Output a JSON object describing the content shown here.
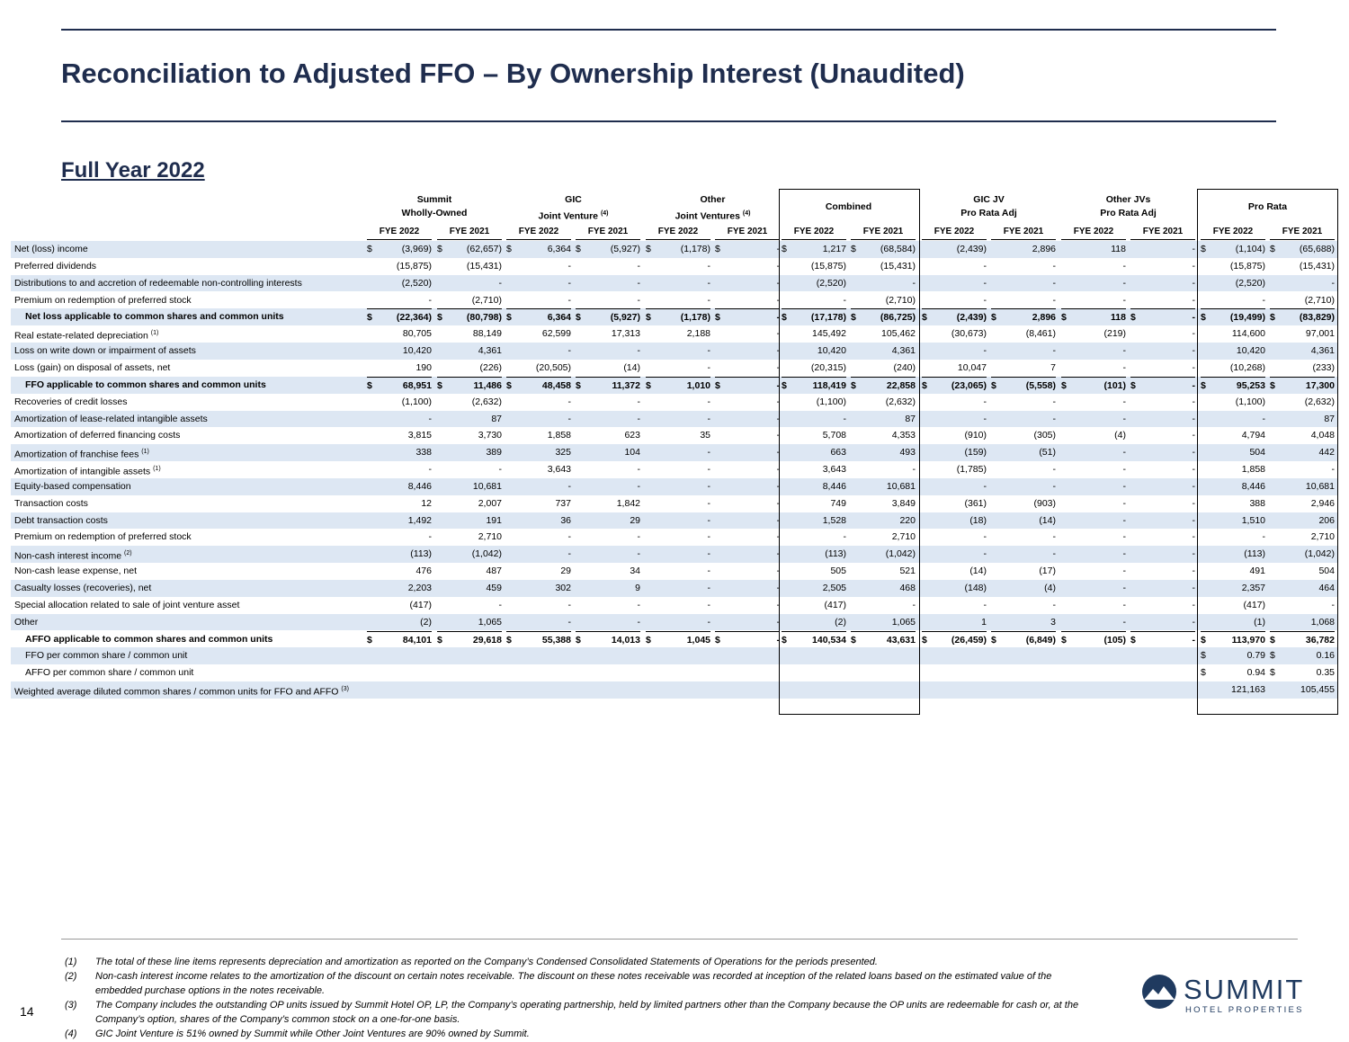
{
  "header": {
    "title": "Reconciliation to Adjusted FFO – By Ownership Interest (Unaudited)",
    "subtitle": "Full Year 2022"
  },
  "table": {
    "groups": [
      {
        "lines": [
          "Summit",
          "Wholly-Owned"
        ]
      },
      {
        "lines": [
          "GIC",
          "Joint Venture"
        ],
        "note": "(4)"
      },
      {
        "lines": [
          "Other",
          "Joint Ventures"
        ],
        "note": "(4)"
      },
      {
        "lines": [
          "Combined"
        ]
      },
      {
        "lines": [
          "GIC JV",
          "Pro Rata Adj"
        ]
      },
      {
        "lines": [
          "Other JVs",
          "Pro Rata Adj"
        ]
      },
      {
        "lines": [
          "Pro Rata"
        ]
      }
    ],
    "columns": [
      "FYE 2022",
      "FYE 2021",
      "FYE 2022",
      "FYE 2021",
      "FYE 2022",
      "FYE 2021",
      "FYE 2022",
      "FYE 2021",
      "FYE 2022",
      "FYE 2021",
      "FYE 2022",
      "FYE 2021",
      "FYE 2022",
      "FYE 2021"
    ],
    "rows": [
      {
        "label": "Net (loss) income",
        "cells": [
          [
            "$",
            "(3,969)"
          ],
          [
            "$",
            "(62,657)"
          ],
          [
            "$",
            "6,364"
          ],
          [
            "$",
            "(5,927)"
          ],
          [
            "$",
            "(1,178)"
          ],
          [
            "$",
            "-"
          ],
          [
            "$",
            "1,217"
          ],
          [
            "$",
            "(68,584)"
          ],
          "(2,439)",
          "2,896",
          "118",
          "-",
          [
            "$",
            "(1,104)"
          ],
          [
            "$",
            "(65,688)"
          ]
        ]
      },
      {
        "label": "Preferred dividends",
        "cells": [
          "(15,875)",
          "(15,431)",
          "-",
          "-",
          "-",
          "-",
          "(15,875)",
          "(15,431)",
          "-",
          "-",
          "-",
          "-",
          "(15,875)",
          "(15,431)"
        ]
      },
      {
        "label": "Distributions to and accretion of redeemable non-controlling interests",
        "cells": [
          "(2,520)",
          "-",
          "-",
          "-",
          "-",
          "-",
          "(2,520)",
          "-",
          "-",
          "-",
          "-",
          "-",
          "(2,520)",
          "-"
        ]
      },
      {
        "label": "Premium on redemption of preferred stock",
        "cells": [
          "-",
          "(2,710)",
          "-",
          "-",
          "-",
          "-",
          "-",
          "(2,710)",
          "-",
          "-",
          "-",
          "-",
          "-",
          "(2,710)"
        ]
      },
      {
        "label": "Net loss applicable to common shares and common units",
        "bold": true,
        "cells": [
          [
            "$",
            "(22,364)"
          ],
          [
            "$",
            "(80,798)"
          ],
          [
            "$",
            "6,364"
          ],
          [
            "$",
            "(5,927)"
          ],
          [
            "$",
            "(1,178)"
          ],
          [
            "$",
            "-"
          ],
          [
            "$",
            "(17,178)"
          ],
          [
            "$",
            "(86,725)"
          ],
          [
            "$",
            "(2,439)"
          ],
          [
            "$",
            "2,896"
          ],
          [
            "$",
            "118"
          ],
          [
            "$",
            "-"
          ],
          [
            "$",
            "(19,499)"
          ],
          [
            "$",
            "(83,829)"
          ]
        ]
      },
      {
        "label": "Real estate-related depreciation",
        "note": "(1)",
        "cells": [
          "80,705",
          "88,149",
          "62,599",
          "17,313",
          "2,188",
          "-",
          "145,492",
          "105,462",
          "(30,673)",
          "(8,461)",
          "(219)",
          "-",
          "114,600",
          "97,001"
        ]
      },
      {
        "label": "Loss on write down or impairment of assets",
        "cells": [
          "10,420",
          "4,361",
          "-",
          "-",
          "-",
          "-",
          "10,420",
          "4,361",
          "-",
          "-",
          "-",
          "-",
          "10,420",
          "4,361"
        ]
      },
      {
        "label": "Loss (gain) on disposal of assets, net",
        "cells": [
          "190",
          "(226)",
          "(20,505)",
          "(14)",
          "-",
          "-",
          "(20,315)",
          "(240)",
          "10,047",
          "7",
          "-",
          "-",
          "(10,268)",
          "(233)"
        ]
      },
      {
        "label": "FFO applicable to common shares and common units",
        "bold": true,
        "cells": [
          [
            "$",
            "68,951"
          ],
          [
            "$",
            "11,486"
          ],
          [
            "$",
            "48,458"
          ],
          [
            "$",
            "11,372"
          ],
          [
            "$",
            "1,010"
          ],
          [
            "$",
            "-"
          ],
          [
            "$",
            "118,419"
          ],
          [
            "$",
            "22,858"
          ],
          [
            "$",
            "(23,065)"
          ],
          [
            "$",
            "(5,558)"
          ],
          [
            "$",
            "(101)"
          ],
          [
            "$",
            "-"
          ],
          [
            "$",
            "95,253"
          ],
          [
            "$",
            "17,300"
          ]
        ]
      },
      {
        "label": "Recoveries of credit losses",
        "cells": [
          "(1,100)",
          "(2,632)",
          "-",
          "-",
          "-",
          "-",
          "(1,100)",
          "(2,632)",
          "-",
          "-",
          "-",
          "-",
          "(1,100)",
          "(2,632)"
        ]
      },
      {
        "label": "Amortization of lease-related intangible assets",
        "cells": [
          "-",
          "87",
          "-",
          "-",
          "-",
          "-",
          "-",
          "87",
          "-",
          "-",
          "-",
          "-",
          "-",
          "87"
        ]
      },
      {
        "label": "Amortization of deferred financing costs",
        "cells": [
          "3,815",
          "3,730",
          "1,858",
          "623",
          "35",
          "-",
          "5,708",
          "4,353",
          "(910)",
          "(305)",
          "(4)",
          "-",
          "4,794",
          "4,048"
        ]
      },
      {
        "label": "Amortization of franchise fees",
        "note": "(1)",
        "cells": [
          "338",
          "389",
          "325",
          "104",
          "-",
          "-",
          "663",
          "493",
          "(159)",
          "(51)",
          "-",
          "-",
          "504",
          "442"
        ]
      },
      {
        "label": "Amortization of intangible assets",
        "note": "(1)",
        "cells": [
          "-",
          "-",
          "3,643",
          "-",
          "-",
          "-",
          "3,643",
          "-",
          "(1,785)",
          "-",
          "-",
          "-",
          "1,858",
          "-"
        ]
      },
      {
        "label": "Equity-based compensation",
        "cells": [
          "8,446",
          "10,681",
          "-",
          "-",
          "-",
          "-",
          "8,446",
          "10,681",
          "-",
          "-",
          "-",
          "-",
          "8,446",
          "10,681"
        ]
      },
      {
        "label": "Transaction costs",
        "cells": [
          "12",
          "2,007",
          "737",
          "1,842",
          "-",
          "-",
          "749",
          "3,849",
          "(361)",
          "(903)",
          "-",
          "-",
          "388",
          "2,946"
        ]
      },
      {
        "label": "Debt transaction costs",
        "cells": [
          "1,492",
          "191",
          "36",
          "29",
          "-",
          "-",
          "1,528",
          "220",
          "(18)",
          "(14)",
          "-",
          "-",
          "1,510",
          "206"
        ]
      },
      {
        "label": "Premium on redemption of preferred stock",
        "cells": [
          "-",
          "2,710",
          "-",
          "-",
          "-",
          "-",
          "-",
          "2,710",
          "-",
          "-",
          "-",
          "-",
          "-",
          "2,710"
        ]
      },
      {
        "label": "Non-cash interest income",
        "note": "(2)",
        "cells": [
          "(113)",
          "(1,042)",
          "-",
          "-",
          "-",
          "-",
          "(113)",
          "(1,042)",
          "-",
          "-",
          "-",
          "-",
          "(113)",
          "(1,042)"
        ]
      },
      {
        "label": "Non-cash lease expense, net",
        "cells": [
          "476",
          "487",
          "29",
          "34",
          "-",
          "-",
          "505",
          "521",
          "(14)",
          "(17)",
          "-",
          "-",
          "491",
          "504"
        ]
      },
      {
        "label": "Casualty losses (recoveries), net",
        "cells": [
          "2,203",
          "459",
          "302",
          "9",
          "-",
          "-",
          "2,505",
          "468",
          "(148)",
          "(4)",
          "-",
          "-",
          "2,357",
          "464"
        ]
      },
      {
        "label": "Special allocation related to sale of joint venture asset",
        "cells": [
          "(417)",
          "-",
          "-",
          "-",
          "-",
          "-",
          "(417)",
          "-",
          "-",
          "-",
          "-",
          "-",
          "(417)",
          "-"
        ]
      },
      {
        "label": "Other",
        "cells": [
          "(2)",
          "1,065",
          "-",
          "-",
          "-",
          "-",
          "(2)",
          "1,065",
          "1",
          "3",
          "-",
          "-",
          "(1)",
          "1,068"
        ]
      },
      {
        "label": "AFFO applicable to common shares and common units",
        "bold": true,
        "cells": [
          [
            "$",
            "84,101"
          ],
          [
            "$",
            "29,618"
          ],
          [
            "$",
            "55,388"
          ],
          [
            "$",
            "14,013"
          ],
          [
            "$",
            "1,045"
          ],
          [
            "$",
            "-"
          ],
          [
            "$",
            "140,534"
          ],
          [
            "$",
            "43,631"
          ],
          [
            "$",
            "(26,459)"
          ],
          [
            "$",
            "(6,849)"
          ],
          [
            "$",
            "(105)"
          ],
          [
            "$",
            "-"
          ],
          [
            "$",
            "113,970"
          ],
          [
            "$",
            "36,782"
          ]
        ]
      },
      {
        "label": "FFO per common share / common unit",
        "indent": true,
        "cells": [
          null,
          null,
          null,
          null,
          null,
          null,
          null,
          null,
          null,
          null,
          null,
          null,
          [
            "$",
            "0.79"
          ],
          [
            "$",
            "0.16"
          ]
        ]
      },
      {
        "label": "AFFO per common share / common unit",
        "indent": true,
        "cells": [
          null,
          null,
          null,
          null,
          null,
          null,
          null,
          null,
          null,
          null,
          null,
          null,
          [
            "$",
            "0.94"
          ],
          [
            "$",
            "0.35"
          ]
        ]
      },
      {
        "label": "Weighted average diluted common shares / common units for FFO and AFFO",
        "note": "(3)",
        "cells": [
          null,
          null,
          null,
          null,
          null,
          null,
          null,
          null,
          null,
          null,
          null,
          null,
          "121,163",
          "105,455"
        ]
      }
    ]
  },
  "footnotes": [
    {
      "num": "(1)",
      "text": "The total of these line items represents depreciation and amortization as reported on the Company’s Condensed Consolidated Statements of Operations for the periods presented."
    },
    {
      "num": "(2)",
      "text": "Non-cash interest income relates to the amortization of the discount on certain notes receivable. The discount on these notes receivable was recorded at inception of the related loans based on the estimated value of the embedded purchase options in the notes receivable."
    },
    {
      "num": "(3)",
      "text": "The Company includes the outstanding OP units issued by Summit Hotel OP, LP, the Company’s operating partnership, held by limited partners other than the Company because the OP units are redeemable for cash or, at the Company’s option, shares of the Company’s common stock on a one-for-one basis."
    },
    {
      "num": "(4)",
      "text": "GIC Joint Venture is 51% owned by Summit while Other Joint Ventures are 90% owned by Summit."
    }
  ],
  "page_number": "14",
  "logo": {
    "name": "SUMMIT",
    "tagline": "HOTEL PROPERTIES"
  }
}
